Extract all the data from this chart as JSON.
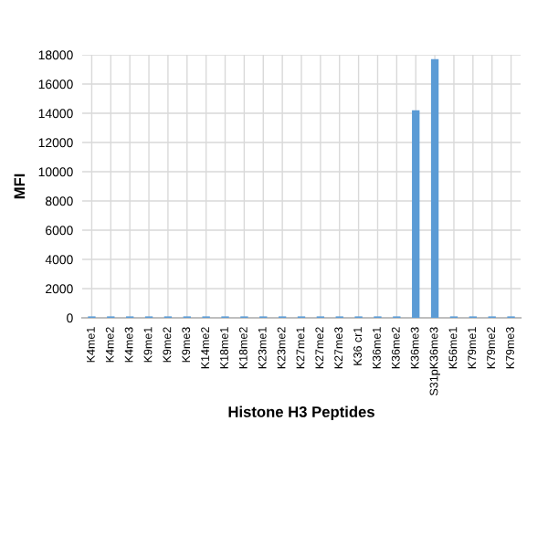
{
  "chart_data": {
    "type": "bar",
    "xlabel": "Histone H3 Peptides",
    "ylabel": "MFI",
    "categories": [
      "K4me1",
      "K4me2",
      "K4me3",
      "K9me1",
      "K9me2",
      "K9me3",
      "K14me2",
      "K18me1",
      "K18me2",
      "K23me1",
      "K23me2",
      "K27me1",
      "K27me2",
      "K27me3",
      "K36 cr1",
      "K36me1",
      "K36me2",
      "K36me3",
      "S31pK36me3",
      "K56me1",
      "K79me1",
      "K79me2",
      "K79me3"
    ],
    "values": [
      100,
      100,
      100,
      100,
      100,
      100,
      100,
      100,
      100,
      100,
      100,
      100,
      100,
      100,
      100,
      100,
      100,
      14200,
      17700,
      100,
      100,
      100,
      100
    ],
    "color": "#5b9bd5",
    "ylim": [
      0,
      18000
    ],
    "yticks": [
      0,
      2000,
      4000,
      6000,
      8000,
      10000,
      12000,
      14000,
      16000,
      18000
    ],
    "grid": true
  }
}
